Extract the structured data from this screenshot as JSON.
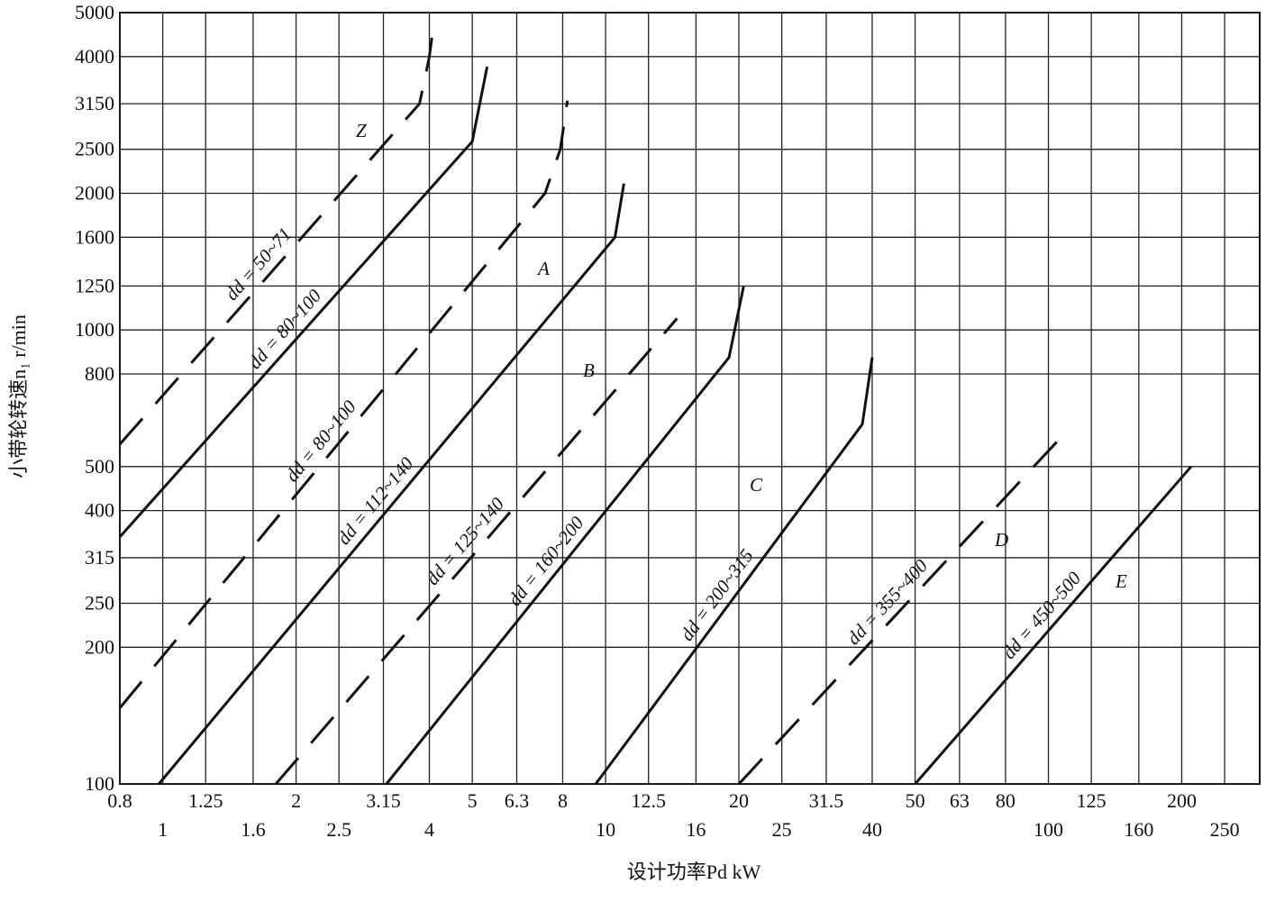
{
  "chart_data": {
    "type": "line",
    "xlabel": "设计功率Pd  kW",
    "ylabel": "小带轮转速n₁  r/min",
    "log_x": true,
    "log_y": true,
    "grid": true,
    "xlim": [
      0.8,
      300
    ],
    "ylim": [
      100,
      5000
    ],
    "xticks": [
      0.8,
      1,
      1.25,
      1.6,
      2,
      2.5,
      3.15,
      4,
      5,
      6.3,
      8,
      10,
      12.5,
      16,
      20,
      25,
      31.5,
      40,
      50,
      63,
      80,
      100,
      125,
      160,
      200,
      250
    ],
    "yticks": [
      100,
      200,
      250,
      315,
      400,
      500,
      800,
      1000,
      1250,
      1600,
      2000,
      2500,
      3150,
      4000,
      5000
    ],
    "regions": [
      "Z",
      "A",
      "B",
      "C",
      "D",
      "E"
    ],
    "series": [
      {
        "name": "dd = 50~71",
        "color": "#111",
        "dashed": true,
        "x": [
          0.8,
          3.8,
          4.0,
          4.1
        ],
        "values": [
          560,
          3150,
          4000,
          4800
        ]
      },
      {
        "name": "dd = 80~100",
        "color": "#111",
        "dashed": false,
        "x": [
          0.8,
          5,
          5.4
        ],
        "values": [
          350,
          2600,
          3800
        ]
      },
      {
        "name": "dd = 80~100",
        "color": "#111",
        "dashed": true,
        "x": [
          0.8,
          7.3,
          7.9,
          8.2
        ],
        "values": [
          147,
          2000,
          2500,
          3200
        ]
      },
      {
        "name": "dd = 112~140",
        "color": "#111",
        "dashed": false,
        "x": [
          0.98,
          10.5,
          11
        ],
        "values": [
          100,
          1600,
          2100
        ]
      },
      {
        "name": "dd = 125~140",
        "color": "#111",
        "dashed": true,
        "x": [
          1.8,
          14.5
        ],
        "values": [
          100,
          1060
        ]
      },
      {
        "name": "dd = 160~200",
        "color": "#111",
        "dashed": false,
        "x": [
          3.2,
          19,
          20.5
        ],
        "values": [
          100,
          870,
          1250
        ]
      },
      {
        "name": "dd = 200~315",
        "color": "#111",
        "dashed": false,
        "x": [
          9.5,
          38,
          40
        ],
        "values": [
          100,
          620,
          870
        ]
      },
      {
        "name": "dd = 355~400",
        "color": "#111",
        "dashed": true,
        "x": [
          20,
          105
        ],
        "values": [
          100,
          570
        ]
      },
      {
        "name": "dd = 450~500",
        "color": "#111",
        "dashed": false,
        "x": [
          50,
          210
        ],
        "values": [
          100,
          500
        ]
      }
    ]
  }
}
